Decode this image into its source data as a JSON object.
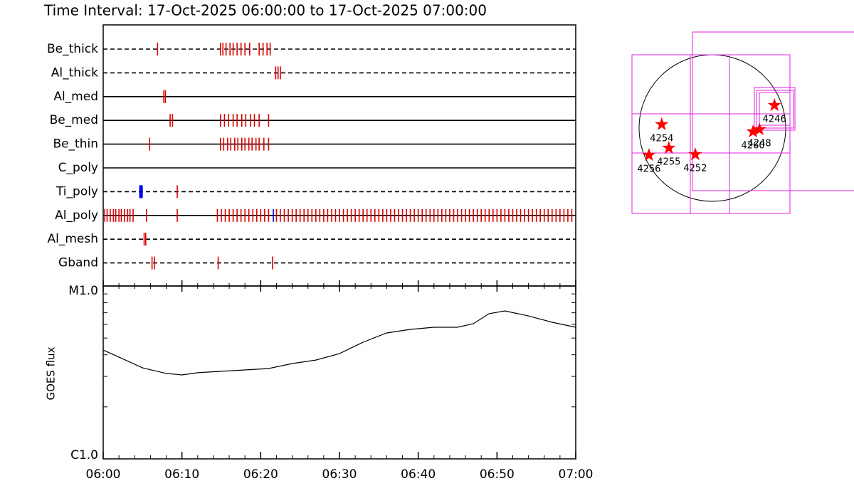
{
  "chart_data": [
    {
      "type": "timeline",
      "title": "Time Interval: 17-Oct-2025 06:00:00 to 17-Oct-2025 07:00:00",
      "xlim": [
        0,
        60
      ],
      "rows": [
        {
          "name": "Be_thick",
          "style": "dashed",
          "events": [
            {
              "color": "#dd0000",
              "times": [
                6.9,
                14.9,
                15.2,
                15.6,
                16.1,
                16.5,
                17.0,
                17.5,
                18.0,
                18.6,
                19.8,
                20.3,
                20.8,
                21.2
              ]
            }
          ]
        },
        {
          "name": "Al_thick",
          "style": "dashed",
          "events": [
            {
              "color": "#dd0000",
              "times": [
                21.9,
                22.2,
                22.5
              ]
            }
          ]
        },
        {
          "name": "Al_med",
          "style": "solid",
          "events": [
            {
              "color": "#dd0000",
              "times": [
                7.7,
                7.9
              ]
            }
          ]
        },
        {
          "name": "Be_med",
          "style": "solid",
          "events": [
            {
              "color": "#dd0000",
              "times": [
                8.5,
                8.8,
                14.9,
                15.4,
                15.9,
                16.5,
                17.0,
                17.6,
                18.1,
                18.7,
                19.2,
                19.8,
                21.0
              ]
            }
          ]
        },
        {
          "name": "Be_thin",
          "style": "solid",
          "events": [
            {
              "color": "#dd0000",
              "times": [
                5.9,
                14.9,
                15.3,
                15.8,
                16.2,
                16.7,
                17.1,
                17.6,
                18.0,
                18.5,
                18.9,
                19.4,
                19.8,
                20.4,
                21.0
              ]
            }
          ]
        },
        {
          "name": "C_poly",
          "style": "solid",
          "events": []
        },
        {
          "name": "Ti_poly",
          "style": "dashed",
          "events": [
            {
              "color": "#0000ee",
              "times": [
                4.8
              ]
            },
            {
              "color": "#dd0000",
              "times": [
                9.4
              ]
            }
          ]
        },
        {
          "name": "Al_poly",
          "style": "solid",
          "events": [
            {
              "color": "#dd0000",
              "times": [
                0.2,
                0.5,
                0.9,
                1.3,
                1.6,
                2.0,
                2.3,
                2.7,
                3.1,
                3.4,
                3.8,
                5.5,
                9.4,
                14.5,
                15.0,
                15.5,
                16.0,
                16.5,
                17.0,
                17.5,
                18.0,
                18.5,
                19.0,
                19.5,
                20.0,
                20.5,
                21.0,
                22.0,
                22.5,
                23.0,
                23.5,
                24.0,
                24.5,
                25.0,
                25.5,
                26.0,
                26.5,
                27.0,
                27.5,
                28.0,
                28.5,
                29.0,
                29.5,
                30.0,
                30.5,
                31.0,
                31.5,
                32.0,
                32.5,
                33.0,
                33.5,
                34.0,
                34.5,
                35.0,
                35.5,
                36.0,
                36.5,
                37.0,
                37.5,
                38.0,
                38.5,
                39.0,
                39.5,
                40.0,
                40.5,
                41.0,
                41.5,
                42.0,
                42.5,
                43.0,
                43.5,
                44.0,
                44.5,
                45.0,
                45.5,
                46.0,
                46.5,
                47.0,
                47.5,
                48.0,
                48.5,
                49.0,
                49.5,
                50.0,
                50.5,
                51.0,
                51.5,
                52.0,
                52.5,
                53.0,
                53.5,
                54.0,
                54.5,
                55.0,
                55.5,
                56.0,
                56.5,
                57.0,
                57.5,
                58.0,
                58.5,
                59.0,
                59.5
              ]
            },
            {
              "color": "#0000ee",
              "times": [
                21.6
              ]
            }
          ]
        },
        {
          "name": "Al_mesh",
          "style": "dashed",
          "events": [
            {
              "color": "#dd0000",
              "times": [
                5.2,
                5.4
              ]
            }
          ]
        },
        {
          "name": "Gband",
          "style": "dashed",
          "events": [
            {
              "color": "#dd0000",
              "times": [
                6.2,
                6.5,
                14.6,
                21.5
              ]
            }
          ]
        }
      ]
    },
    {
      "type": "line",
      "ylabel": "GOES flux",
      "color": "#000000",
      "log": true,
      "x": [
        0,
        2,
        5,
        8,
        10,
        12,
        15,
        18,
        21,
        24,
        27,
        30,
        33,
        36,
        39,
        42,
        45,
        47,
        49,
        51,
        54,
        57,
        60
      ],
      "values": [
        4.26e-06,
        3.88e-06,
        3.36e-06,
        3.12e-06,
        3.06e-06,
        3.15e-06,
        3.21e-06,
        3.27e-06,
        3.33e-06,
        3.56e-06,
        3.73e-06,
        4.06e-06,
        4.73e-06,
        5.35e-06,
        5.61e-06,
        5.77e-06,
        5.77e-06,
        6.05e-06,
        6.92e-06,
        7.18e-06,
        6.71e-06,
        6.17e-06,
        5.77e-06
      ],
      "xlim": [
        0,
        60
      ],
      "xticks": [
        {
          "value": 0,
          "label": "06:00"
        },
        {
          "value": 10,
          "label": "06:10"
        },
        {
          "value": 20,
          "label": "06:20"
        },
        {
          "value": 30,
          "label": "06:30"
        },
        {
          "value": 40,
          "label": "06:40"
        },
        {
          "value": 50,
          "label": "06:50"
        },
        {
          "value": 60,
          "label": "07:00"
        }
      ],
      "xminorticks": [
        2,
        4,
        6,
        8,
        12,
        14,
        16,
        18,
        22,
        24,
        26,
        28,
        32,
        34,
        36,
        38,
        42,
        44,
        46,
        48,
        52,
        54,
        56,
        58
      ],
      "ylim": [
        1e-06,
        1e-05
      ],
      "yticks": [
        {
          "value": 1e-06,
          "label": "C1.0"
        },
        {
          "value": 1e-05,
          "label": "M1.0"
        }
      ],
      "yminorticks": [
        2e-06,
        3e-06,
        4e-06,
        5e-06,
        6e-06,
        7e-06,
        8e-06,
        9e-06
      ]
    },
    {
      "type": "map",
      "color": "#ff0000",
      "xlim": [
        -1200,
        1200
      ],
      "ylim": [
        -1200,
        1200
      ],
      "points": [
        {
          "label": "4246",
          "x": 811,
          "y": 298
        },
        {
          "label": "4254",
          "x": -662,
          "y": 47
        },
        {
          "label": "4248",
          "x": 615,
          "y": -19
        },
        {
          "label": "4260",
          "x": 531,
          "y": -47
        },
        {
          "label": "4255",
          "x": -569,
          "y": -261
        },
        {
          "label": "4256",
          "x": -829,
          "y": -354
        },
        {
          "label": "4252",
          "x": -224,
          "y": -345
        }
      ]
    }
  ]
}
